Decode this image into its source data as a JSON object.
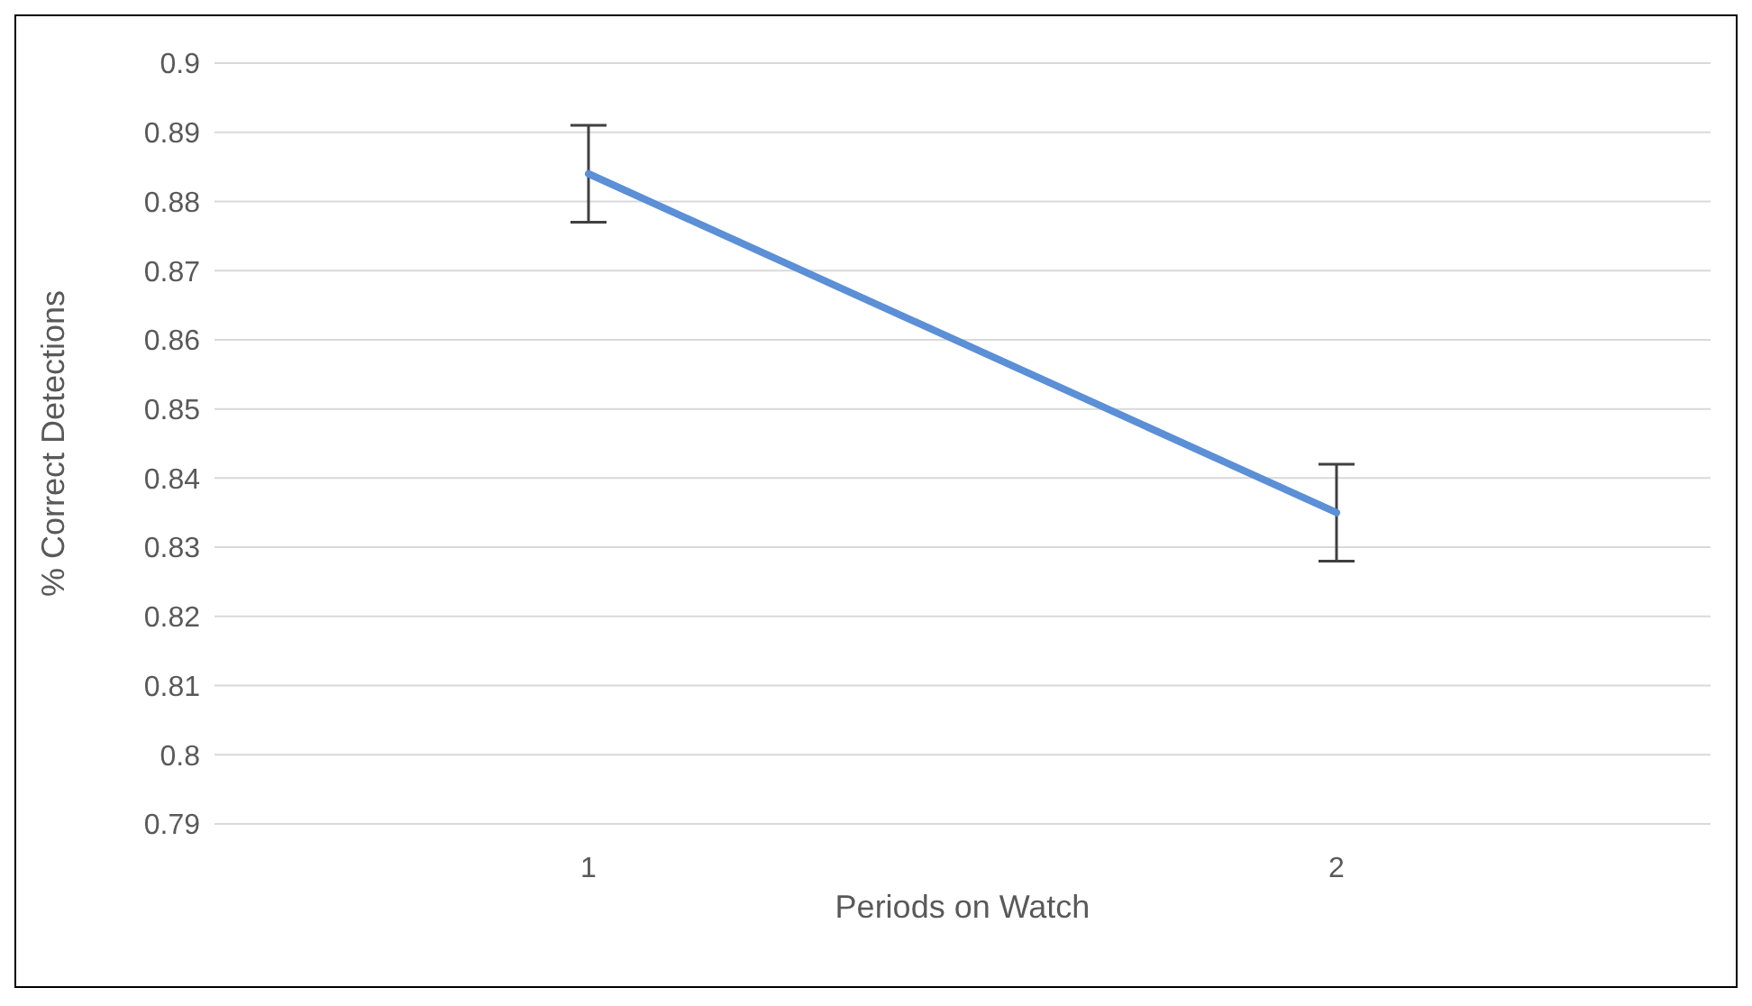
{
  "chart_data": {
    "type": "line",
    "xlabel": "Periods on Watch",
    "ylabel": "% Correct Detections",
    "categories": [
      "1",
      "2"
    ],
    "series": [
      {
        "color": "#5b8fd6",
        "values": [
          0.884,
          0.835
        ],
        "errors": [
          0.007,
          0.007
        ]
      }
    ],
    "ylim": [
      0.79,
      0.9
    ],
    "yticks": [
      0.79,
      0.8,
      0.81,
      0.82,
      0.83,
      0.84,
      0.85,
      0.86,
      0.87,
      0.88,
      0.89,
      0.9
    ],
    "grid": "y",
    "legend": false,
    "marker": "none",
    "line_style": "solid"
  }
}
